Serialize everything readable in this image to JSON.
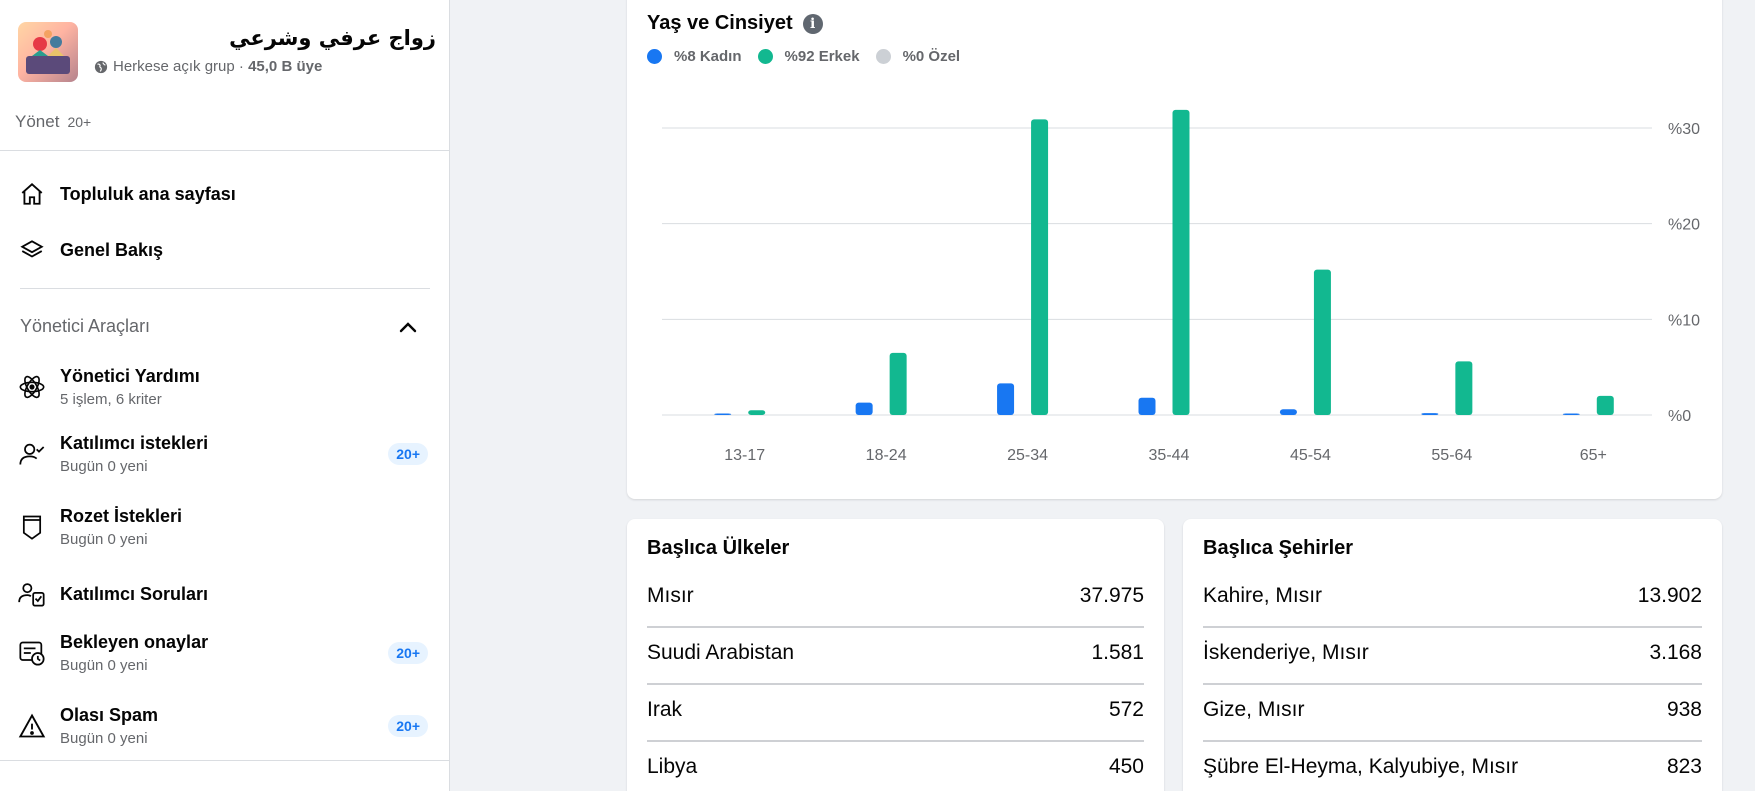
{
  "group": {
    "name": "زواج عرفي وشرعي",
    "privacy": "Herkese açık grup",
    "separator": " · ",
    "members": "45,0 B üye"
  },
  "manage": {
    "label": "Yönet",
    "count": "20+"
  },
  "nav": {
    "community_home": "Topluluk ana sayfası",
    "overview": "Genel Bakış"
  },
  "admin_tools": {
    "title": "Yönetici Araçları",
    "items": [
      {
        "title": "Yönetici Yardımı",
        "sub": "5 işlem, 6 kriter",
        "badge": ""
      },
      {
        "title": "Katılımcı istekleri",
        "sub": "Bugün 0 yeni",
        "badge": "20+"
      },
      {
        "title": "Rozet İstekleri",
        "sub": "Bugün 0 yeni",
        "badge": ""
      },
      {
        "title": "Katılımcı Soruları",
        "sub": "",
        "badge": ""
      },
      {
        "title": "Bekleyen onaylar",
        "sub": "Bugün 0 yeni",
        "badge": "20+"
      },
      {
        "title": "Olası Spam",
        "sub": "Bugün 0 yeni",
        "badge": "20+"
      }
    ]
  },
  "chart_card": {
    "title": "Yaş ve Cinsiyet",
    "legend": [
      {
        "label": "%8 Kadın",
        "color": "#1877f2"
      },
      {
        "label": "%92 Erkek",
        "color": "#12b890"
      },
      {
        "label": "%0 Özel",
        "color": "#ccd0d5"
      }
    ]
  },
  "chart_data": {
    "type": "bar",
    "categories": [
      "13-17",
      "18-24",
      "25-34",
      "35-44",
      "45-54",
      "55-64",
      "65+"
    ],
    "series": [
      {
        "name": "%8 Kadın",
        "color": "#1877f2",
        "values": [
          0.1,
          1.3,
          3.3,
          1.8,
          0.6,
          0.2,
          0.1
        ]
      },
      {
        "name": "%92 Erkek",
        "color": "#12b890",
        "values": [
          0.5,
          6.5,
          30.9,
          31.9,
          15.2,
          5.6,
          2.0
        ]
      },
      {
        "name": "%0 Özel",
        "color": "#ccd0d5",
        "values": [
          0,
          0,
          0,
          0,
          0,
          0,
          0
        ]
      }
    ],
    "y_ticks": [
      {
        "value": 0,
        "label": "%0"
      },
      {
        "value": 10,
        "label": "%10"
      },
      {
        "value": 20,
        "label": "%20"
      },
      {
        "value": 30,
        "label": "%30"
      }
    ],
    "ylim": [
      0,
      30
    ],
    "grid": true,
    "legend_position": "top-left",
    "title": "Yaş ve Cinsiyet"
  },
  "top_countries": {
    "title": "Başlıca Ülkeler",
    "rows": [
      {
        "name": "Mısır",
        "value": "37.975"
      },
      {
        "name": "Suudi Arabistan",
        "value": "1.581"
      },
      {
        "name": "Irak",
        "value": "572"
      },
      {
        "name": "Libya",
        "value": "450"
      }
    ]
  },
  "top_cities": {
    "title": "Başlıca Şehirler",
    "rows": [
      {
        "name": "Kahire, Mısır",
        "value": "13.902"
      },
      {
        "name": "İskenderiye, Mısır",
        "value": "3.168"
      },
      {
        "name": "Gize, Mısır",
        "value": "938"
      },
      {
        "name": "Şübre El-Heyma, Kalyubiye, Mısır",
        "value": "823"
      }
    ]
  }
}
